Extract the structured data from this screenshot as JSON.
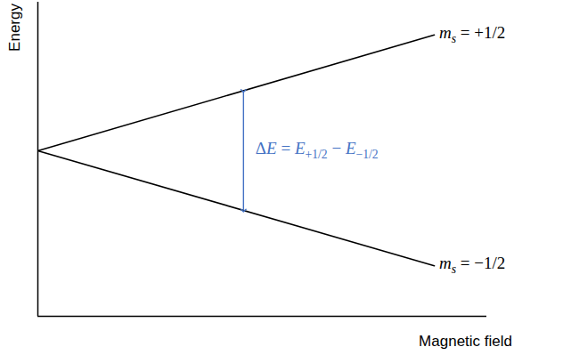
{
  "chart_data": {
    "type": "line",
    "x_label": "Magnetic field",
    "y_label": "Energy",
    "xlim": [
      0,
      10
    ],
    "ylim": [
      0,
      10
    ],
    "xticks": [],
    "yticks": [],
    "tick_labels": false,
    "grid": false,
    "x": [
      0,
      8.83
    ],
    "series": [
      {
        "label": [
          {
            "text": "m"
          },
          {
            "text": "s",
            "sub": true
          },
          {
            "text": " = +1/2"
          }
        ],
        "color": "#000000",
        "values": [
          5.27,
          8.96
        ]
      },
      {
        "label": [
          {
            "text": "m"
          },
          {
            "text": "s",
            "sub": true
          },
          {
            "text": " = −1/2"
          }
        ],
        "color": "#000000",
        "values": [
          5.27,
          1.61
        ]
      }
    ],
    "annotations": [
      {
        "x": 4.58,
        "y1": 7.18,
        "y2": 3.37,
        "color": "#4472c4",
        "text": [
          {
            "text": "Δ"
          },
          {
            "text": "E"
          },
          {
            "text": " = "
          },
          {
            "text": "E"
          },
          {
            "text": "+1/2",
            "sub": true
          },
          {
            "text": " − "
          },
          {
            "text": "E"
          },
          {
            "text": "−1/2",
            "sub": true
          }
        ]
      }
    ]
  }
}
